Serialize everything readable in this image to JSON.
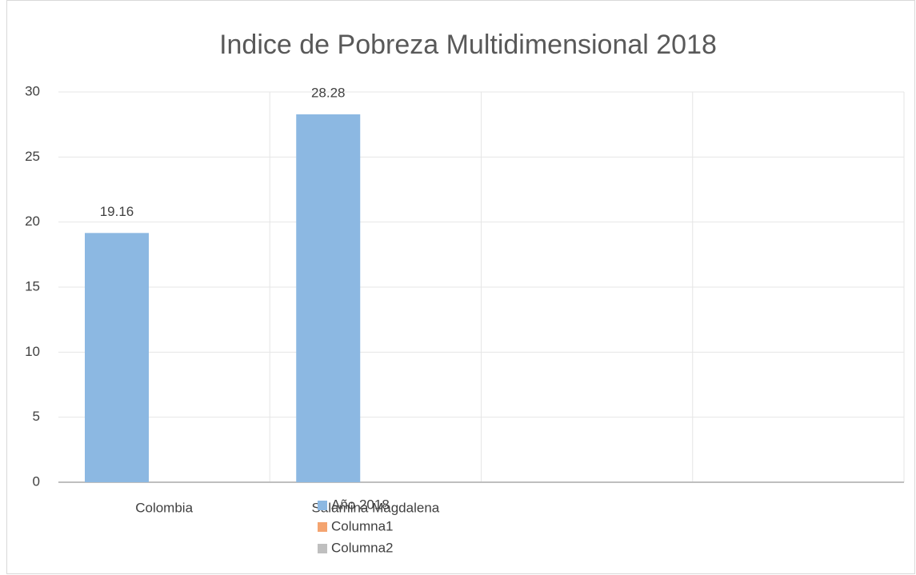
{
  "chart_data": {
    "type": "bar",
    "title": "Indice de Pobreza Multidimensional 2018",
    "categories": [
      "Colombia",
      "Salamina Magdalena",
      null,
      null
    ],
    "series": [
      {
        "name": "Año 2018",
        "color": "#8cb8e2",
        "values": [
          19.16,
          28.28,
          null,
          null
        ]
      },
      {
        "name": "Columna1",
        "color": "#f4a470",
        "values": [
          null,
          null,
          null,
          null
        ]
      },
      {
        "name": "Columna2",
        "color": "#bfbfbf",
        "values": [
          null,
          null,
          null,
          null
        ]
      }
    ],
    "ylim": [
      0,
      30
    ],
    "yticks": [
      0,
      5,
      10,
      15,
      20,
      25,
      30
    ],
    "grid": true,
    "data_labels": true,
    "legend": "bottom"
  }
}
